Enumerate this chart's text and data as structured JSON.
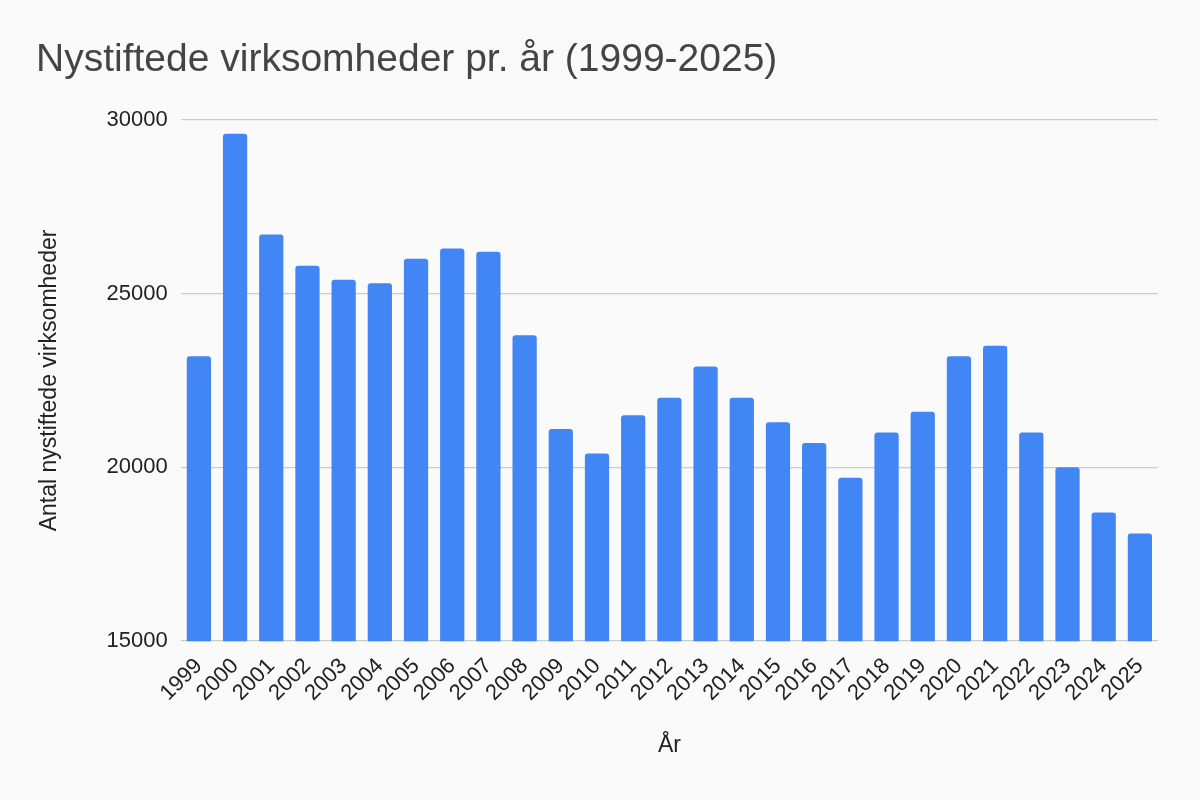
{
  "chart_data": {
    "type": "bar",
    "title": "Nystiftede virksomheder pr. år (1999-2025)",
    "xlabel": "År",
    "ylabel": "Antal nystiftede virksomheder",
    "categories": [
      "1999",
      "2000",
      "2001",
      "2002",
      "2003",
      "2004",
      "2005",
      "2006",
      "2007",
      "2008",
      "2009",
      "2010",
      "2011",
      "2012",
      "2013",
      "2014",
      "2015",
      "2016",
      "2017",
      "2018",
      "2019",
      "2020",
      "2021",
      "2022",
      "2023",
      "2024",
      "2025"
    ],
    "values": [
      23200,
      29600,
      26700,
      25800,
      25400,
      25300,
      26000,
      26300,
      26200,
      23800,
      21100,
      20400,
      21500,
      22000,
      22900,
      22000,
      21300,
      20700,
      19700,
      21000,
      21600,
      23200,
      23500,
      21000,
      20000,
      18700,
      18100
    ],
    "color": "#4285f4",
    "ylim": [
      15000,
      30000
    ],
    "yticks": [
      15000,
      20000,
      25000,
      30000
    ],
    "grid": "y"
  }
}
